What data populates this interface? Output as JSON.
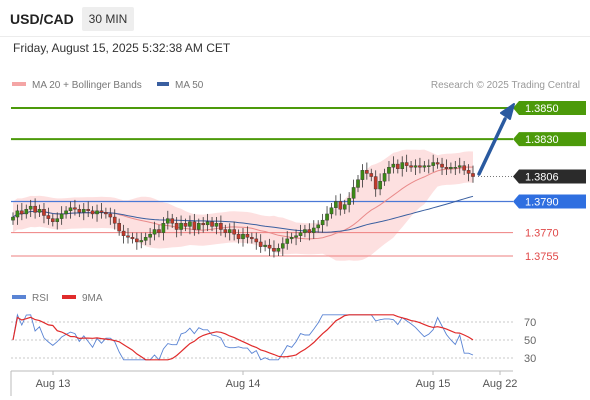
{
  "header": {
    "pair": "USD/CAD",
    "timeframe": "30 MIN"
  },
  "datetime": "Friday, August 15, 2025 5:32:38 AM CET",
  "legend": {
    "ma20": "MA 20 + Bollinger Bands",
    "ma50": "MA 50",
    "credit": "Research © 2025 Trading Central"
  },
  "rsi_legend": {
    "rsi": "RSI",
    "ma9": "9MA"
  },
  "colors": {
    "green": "#4c9a0a",
    "blue_level": "#4a78d6",
    "red_level": "#ee7f7f",
    "arrow": "#2a5aa0",
    "band": "#fcd6d6",
    "ma20": "#e98a8a",
    "ma50": "#3a5fa0",
    "rsi": "#5a84d4",
    "rsi_ma": "#e02b2b"
  },
  "chart_data": {
    "type": "line",
    "title": "USD/CAD",
    "price_levels": [
      {
        "value": 1.385,
        "label": "1.3850",
        "kind": "target"
      },
      {
        "value": 1.383,
        "label": "1.3830",
        "kind": "target"
      },
      {
        "value": 1.3806,
        "label": "1.3806",
        "kind": "current"
      },
      {
        "value": 1.379,
        "label": "1.3790",
        "kind": "pivot"
      },
      {
        "value": 1.377,
        "label": "1.3770",
        "kind": "support"
      },
      {
        "value": 1.3755,
        "label": "1.3755",
        "kind": "support"
      }
    ],
    "x_ticks": [
      "Aug 13",
      "Aug 14",
      "Aug 15",
      "Aug 22"
    ],
    "rsi_ticks": [
      "70",
      "50",
      "30"
    ],
    "price_closes": [
      1.378,
      1.3784,
      1.3782,
      1.3785,
      1.3787,
      1.3783,
      1.3785,
      1.3781,
      1.3779,
      1.3777,
      1.3779,
      1.3782,
      1.3784,
      1.3786,
      1.3785,
      1.3783,
      1.3785,
      1.3784,
      1.3782,
      1.3784,
      1.3783,
      1.3782,
      1.378,
      1.3776,
      1.3771,
      1.3768,
      1.3767,
      1.3766,
      1.3764,
      1.3765,
      1.3767,
      1.3769,
      1.3772,
      1.377,
      1.3776,
      1.3779,
      1.3776,
      1.3772,
      1.3776,
      1.3774,
      1.3777,
      1.3772,
      1.3776,
      1.3775,
      1.3777,
      1.3774,
      1.3776,
      1.3772,
      1.377,
      1.3772,
      1.3769,
      1.3766,
      1.3769,
      1.3767,
      1.3766,
      1.3764,
      1.3761,
      1.3762,
      1.376,
      1.3758,
      1.376,
      1.3763,
      1.3766,
      1.3767,
      1.3768,
      1.377,
      1.3772,
      1.377,
      1.3773,
      1.3775,
      1.3778,
      1.3782,
      1.3786,
      1.379,
      1.3785,
      1.3788,
      1.3792,
      1.3799,
      1.3804,
      1.381,
      1.3808,
      1.3806,
      1.3798,
      1.3803,
      1.3808,
      1.3812,
      1.3814,
      1.3811,
      1.3815,
      1.3813,
      1.3812,
      1.3813,
      1.3812,
      1.3813,
      1.3813,
      1.3815,
      1.3814,
      1.3812,
      1.3811,
      1.3812,
      1.3812,
      1.3813,
      1.381,
      1.3808,
      1.3806
    ]
  }
}
